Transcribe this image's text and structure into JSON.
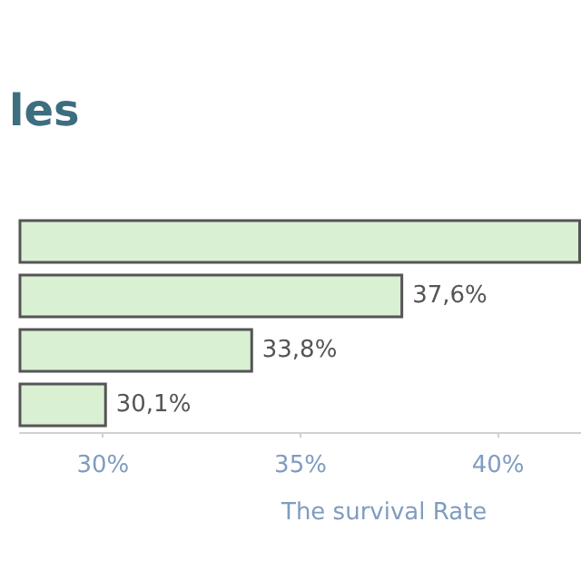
{
  "chart_data": {
    "type": "bar",
    "orientation": "horizontal",
    "title": "les",
    "xlabel": "The survival Rate",
    "categories": [
      null,
      null,
      null,
      null
    ],
    "values": [
      42.1,
      37.6,
      33.8,
      30.1
    ],
    "value_labels": [
      null,
      "37,6%",
      "33,8%",
      "30,1%"
    ],
    "color": "#d9f0d3",
    "xlim": [
      27.9,
      42.1
    ],
    "xticks": [
      {
        "value": 30,
        "label": "30%"
      },
      {
        "value": 35,
        "label": "35%"
      },
      {
        "value": 40,
        "label": "40%"
      }
    ],
    "grid": false
  }
}
